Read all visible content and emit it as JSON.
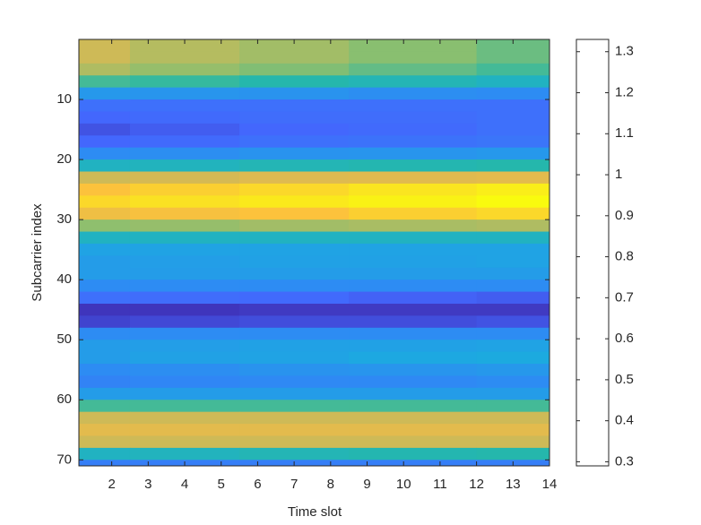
{
  "chart_data": {
    "type": "heatmap",
    "x_label": "Time slot",
    "y_label": "Subcarrier index",
    "x": [
      1,
      4,
      7,
      10,
      14
    ],
    "y": [
      1,
      3,
      5,
      7,
      9,
      11,
      13,
      15,
      17,
      19,
      21,
      23,
      25,
      27,
      29,
      31,
      33,
      35,
      37,
      39,
      41,
      43,
      45,
      47,
      49,
      51,
      53,
      55,
      57,
      59,
      61,
      63,
      65,
      67,
      69,
      71
    ],
    "z": [
      [
        1.05,
        1.01,
        0.98,
        0.94,
        0.9
      ],
      [
        1.05,
        1.01,
        0.98,
        0.94,
        0.9
      ],
      [
        1.0,
        0.96,
        0.93,
        0.89,
        0.85
      ],
      [
        0.85,
        0.83,
        0.8,
        0.78,
        0.75
      ],
      [
        0.6,
        0.59,
        0.58,
        0.56,
        0.55
      ],
      [
        0.45,
        0.45,
        0.45,
        0.45,
        0.45
      ],
      [
        0.42,
        0.43,
        0.44,
        0.44,
        0.45
      ],
      [
        0.38,
        0.4,
        0.42,
        0.43,
        0.45
      ],
      [
        0.42,
        0.43,
        0.45,
        0.46,
        0.47
      ],
      [
        0.55,
        0.56,
        0.58,
        0.59,
        0.6
      ],
      [
        0.75,
        0.76,
        0.78,
        0.79,
        0.8
      ],
      [
        1.05,
        1.06,
        1.08,
        1.09,
        1.1
      ],
      [
        1.2,
        1.23,
        1.25,
        1.28,
        1.3
      ],
      [
        1.25,
        1.27,
        1.29,
        1.31,
        1.33
      ],
      [
        1.15,
        1.18,
        1.2,
        1.23,
        1.25
      ],
      [
        0.95,
        0.96,
        0.98,
        0.99,
        1.0
      ],
      [
        0.75,
        0.75,
        0.75,
        0.75,
        0.75
      ],
      [
        0.65,
        0.65,
        0.65,
        0.65,
        0.65
      ],
      [
        0.62,
        0.63,
        0.64,
        0.64,
        0.65
      ],
      [
        0.62,
        0.62,
        0.62,
        0.62,
        0.62
      ],
      [
        0.55,
        0.55,
        0.55,
        0.55,
        0.55
      ],
      [
        0.45,
        0.44,
        0.43,
        0.41,
        0.4
      ],
      [
        0.32,
        0.32,
        0.33,
        0.33,
        0.33
      ],
      [
        0.35,
        0.36,
        0.37,
        0.37,
        0.38
      ],
      [
        0.55,
        0.55,
        0.55,
        0.55,
        0.55
      ],
      [
        0.62,
        0.63,
        0.64,
        0.64,
        0.65
      ],
      [
        0.62,
        0.64,
        0.65,
        0.67,
        0.68
      ],
      [
        0.55,
        0.56,
        0.58,
        0.59,
        0.6
      ],
      [
        0.52,
        0.53,
        0.54,
        0.54,
        0.55
      ],
      [
        0.62,
        0.62,
        0.62,
        0.62,
        0.62
      ],
      [
        0.85,
        0.85,
        0.85,
        0.85,
        0.85
      ],
      [
        1.05,
        1.05,
        1.05,
        1.05,
        1.05
      ],
      [
        1.1,
        1.1,
        1.1,
        1.1,
        1.1
      ],
      [
        1.05,
        1.05,
        1.05,
        1.05,
        1.05
      ],
      [
        0.75,
        0.76,
        0.78,
        0.79,
        0.8
      ],
      [
        0.5,
        0.5,
        0.5,
        0.5,
        0.5
      ]
    ],
    "xlim": [
      1.1,
      14
    ],
    "ylim": [
      0,
      71
    ],
    "y_reversed": true,
    "xticks": [
      2,
      3,
      4,
      5,
      6,
      7,
      8,
      9,
      10,
      11,
      12,
      13,
      14
    ],
    "yticks": [
      10,
      20,
      30,
      40,
      50,
      60,
      70
    ],
    "clim": [
      0.29,
      1.33
    ],
    "cticks": [
      0.3,
      0.4,
      0.5,
      0.6,
      0.7,
      0.8,
      0.9,
      1,
      1.1,
      1.2,
      1.3
    ],
    "colormap": [
      "#3e26a8",
      "#4367fd",
      "#2d8cf3",
      "#1caadf",
      "#26b8a8",
      "#89bf70",
      "#dbb952",
      "#fcc23c",
      "#f9fb0e"
    ]
  }
}
